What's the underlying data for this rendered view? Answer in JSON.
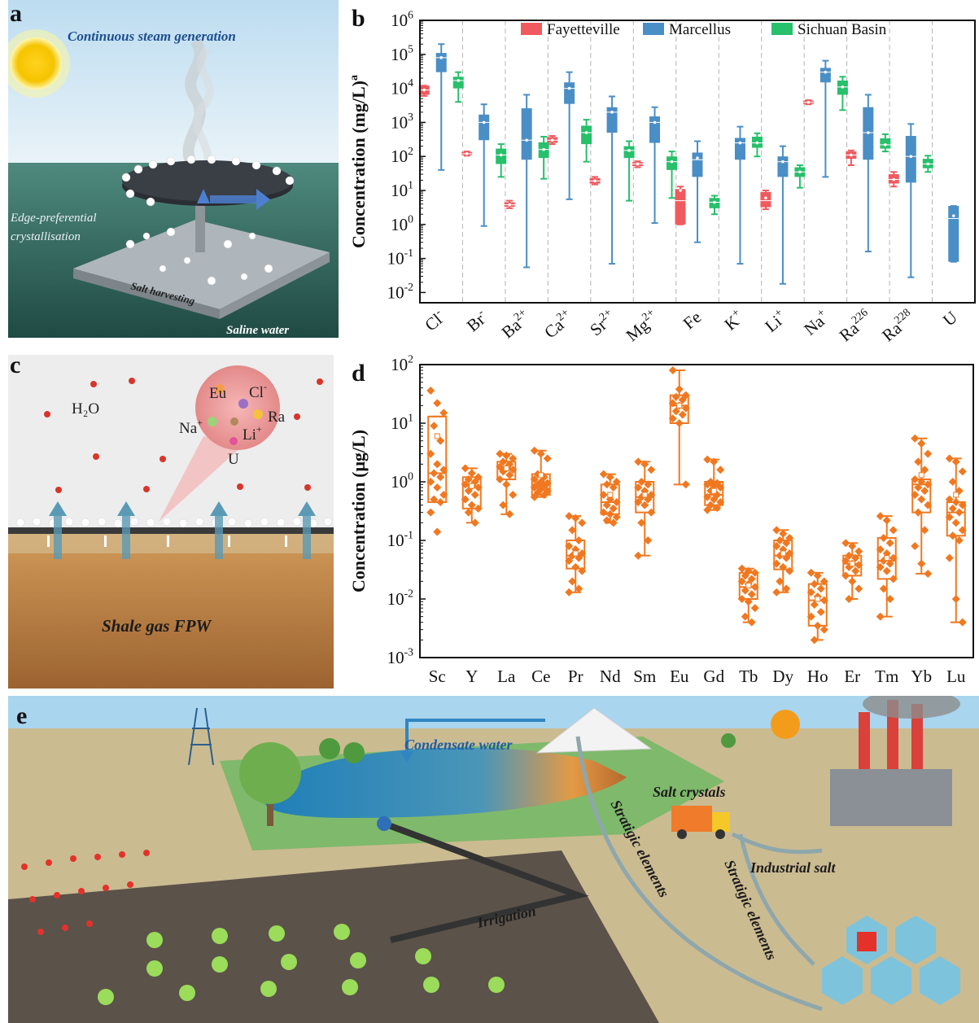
{
  "panels": {
    "a": {
      "label": "a",
      "title": "Continuous steam generation",
      "edge_text_1": "Edge-preferential",
      "edge_text_2": "crystallisation",
      "harvest_text": "Salt harvesting",
      "water_text": "Saline water",
      "colors": {
        "sky": "#cfe6f5",
        "sea": "#6f9e91",
        "disc": "#2a2d33",
        "plate": "#b9c2c8"
      }
    },
    "c": {
      "label": "c",
      "h2o": "H₂O",
      "ions": {
        "eu": "Eu",
        "cl": "Cl",
        "cl_sup": "-",
        "na": "Na",
        "na_sup": "+",
        "ra": "Ra",
        "li": "Li",
        "li_sup": "+",
        "u": "U"
      },
      "fpw": "Shale gas FPW",
      "colors": {
        "ground": "#c58a4d",
        "membrane": "#3a3a3a",
        "arrow": "#4f8faa"
      }
    },
    "e": {
      "label": "e",
      "condensate": "Condensate water",
      "salt": "Salt crystals",
      "irrigation": "Irrigation",
      "strat1": "Stratigic elements",
      "strat2": "Stratigic elements",
      "industrial": "Industrial salt",
      "colors": {
        "sky": "#a7d4ef",
        "ground": "#c9b98f",
        "field": "#5a5148",
        "lake": "#2f86b7"
      }
    }
  },
  "chart_data": [
    {
      "panel": "b",
      "type": "box",
      "label": "b",
      "ylabel_main": "Concentration (mg/L)",
      "ylabel_sup": "a",
      "y_scale": "log",
      "ylim": [
        0.005,
        1000000
      ],
      "yticks": [
        {
          "base": "10",
          "exp": "-2"
        },
        {
          "base": "10",
          "exp": "-1"
        },
        {
          "base": "10",
          "exp": "0"
        },
        {
          "base": "10",
          "exp": "1"
        },
        {
          "base": "10",
          "exp": "2"
        },
        {
          "base": "10",
          "exp": "3"
        },
        {
          "base": "10",
          "exp": "4"
        },
        {
          "base": "10",
          "exp": "5"
        },
        {
          "base": "10",
          "exp": "6"
        }
      ],
      "grid": "vertical dashed separators",
      "legend_position": "top",
      "categories": [
        {
          "base": "Cl",
          "sup": "-"
        },
        {
          "base": "Br",
          "sup": "-"
        },
        {
          "base": "Ba",
          "sup": "2+"
        },
        {
          "base": "Ca",
          "sup": "2+"
        },
        {
          "base": "Sr",
          "sup": "2+"
        },
        {
          "base": "Mg",
          "sup": "2+"
        },
        {
          "base": "Fe",
          "sup": ""
        },
        {
          "base": "K",
          "sup": "+"
        },
        {
          "base": "Li",
          "sup": "+"
        },
        {
          "base": "Na",
          "sup": "+"
        },
        {
          "base": "Ra",
          "sup": "226"
        },
        {
          "base": "Ra",
          "sup": "228"
        },
        {
          "base": "U",
          "sup": ""
        }
      ],
      "series": [
        {
          "name": "Fayetteville",
          "color": "#f05a5e",
          "boxes": [
            {
              "min": 6000,
              "q1": 6500,
              "med": 9000,
              "q3": 12000,
              "max": 12000,
              "mean": 9000
            },
            {
              "min": 105,
              "q1": 110,
              "med": 120,
              "q3": 135,
              "max": 140,
              "mean": 120
            },
            {
              "min": 3,
              "q1": 3.3,
              "med": 3.8,
              "q3": 4.5,
              "max": 5,
              "mean": 3.8
            },
            {
              "min": 230,
              "q1": 250,
              "med": 300,
              "q3": 370,
              "max": 400,
              "mean": 300
            },
            {
              "min": 15,
              "q1": 16,
              "med": 19,
              "q3": 23,
              "max": 25,
              "mean": 19
            },
            {
              "min": 48,
              "q1": 52,
              "med": 60,
              "q3": 68,
              "max": 72,
              "mean": 60
            },
            {
              "min": 1,
              "q1": 1,
              "med": 5,
              "q3": 11,
              "max": 13,
              "mean": 10
            },
            null,
            {
              "min": 2.8,
              "q1": 3.2,
              "med": 5,
              "q3": 9,
              "max": 10,
              "mean": 6
            },
            {
              "min": 3400,
              "q1": 3500,
              "med": 3900,
              "q3": 4400,
              "max": 4500,
              "mean": 3900
            },
            {
              "min": 55,
              "q1": 85,
              "med": 110,
              "q3": 140,
              "max": 150,
              "mean": 110
            },
            {
              "min": 13,
              "q1": 16,
              "med": 21,
              "q3": 30,
              "max": 35,
              "mean": 21
            },
            null
          ]
        },
        {
          "name": "Marcellus",
          "color": "#4a8ec6",
          "boxes": [
            {
              "min": 40,
              "q1": 30000,
              "med": 80000,
              "q3": 110000,
              "max": 200000,
              "mean": 80000
            },
            {
              "min": 0.9,
              "q1": 300,
              "med": 1000,
              "q3": 1700,
              "max": 3400,
              "mean": 1000
            },
            {
              "min": 0.055,
              "q1": 80,
              "med": 300,
              "q3": 2600,
              "max": 6500,
              "mean": 300
            },
            {
              "min": 5.5,
              "q1": 3500,
              "med": 10000,
              "q3": 15000,
              "max": 30000,
              "mean": 10000
            },
            {
              "min": 0.07,
              "q1": 500,
              "med": 2000,
              "q3": 2800,
              "max": 5800,
              "mean": 2000
            },
            {
              "min": 1.1,
              "q1": 250,
              "med": 1000,
              "q3": 1500,
              "max": 2800,
              "mean": 1000
            },
            {
              "min": 0.3,
              "q1": 25,
              "med": 80,
              "q3": 130,
              "max": 280,
              "mean": 90
            },
            {
              "min": 0.07,
              "q1": 80,
              "med": 250,
              "q3": 350,
              "max": 750,
              "mean": 250
            },
            {
              "min": 0.018,
              "q1": 25,
              "med": 70,
              "q3": 100,
              "max": 200,
              "mean": 70
            },
            {
              "min": 25,
              "q1": 15000,
              "med": 30000,
              "q3": 40000,
              "max": 65000,
              "mean": 30000
            },
            {
              "min": 0.16,
              "q1": 80,
              "med": 500,
              "q3": 2800,
              "max": 6500,
              "mean": 500
            },
            {
              "min": 0.028,
              "q1": 17,
              "med": 100,
              "q3": 400,
              "max": 900,
              "mean": 100
            },
            {
              "min": 0.08,
              "q1": 0.08,
              "med": 1.5,
              "q3": 3.5,
              "max": 3.5,
              "mean": 1.8
            }
          ]
        },
        {
          "name": "Sichuan Basin",
          "color": "#27c06b",
          "boxes": [
            {
              "min": 4000,
              "q1": 10000,
              "med": 17000,
              "q3": 22000,
              "max": 30000,
              "mean": 17000
            },
            {
              "min": 25,
              "q1": 60,
              "med": 110,
              "q3": 170,
              "max": 230,
              "mean": 110
            },
            {
              "min": 22,
              "q1": 90,
              "med": 160,
              "q3": 260,
              "max": 380,
              "mean": 160
            },
            {
              "min": 70,
              "q1": 230,
              "med": 500,
              "q3": 800,
              "max": 1200,
              "mean": 500
            },
            {
              "min": 5,
              "q1": 90,
              "med": 150,
              "q3": 200,
              "max": 280,
              "mean": 150
            },
            {
              "min": 6,
              "q1": 40,
              "med": 70,
              "q3": 100,
              "max": 140,
              "mean": 70
            },
            {
              "min": 2,
              "q1": 3,
              "med": 4.5,
              "q3": 6,
              "max": 7,
              "mean": 4.5
            },
            {
              "min": 100,
              "q1": 180,
              "med": 250,
              "q3": 380,
              "max": 480,
              "mean": 250
            },
            {
              "min": 12,
              "q1": 25,
              "med": 35,
              "q3": 48,
              "max": 55,
              "mean": 35
            },
            {
              "min": 2300,
              "q1": 6500,
              "med": 11000,
              "q3": 17000,
              "max": 22000,
              "mean": 11000
            },
            {
              "min": 140,
              "q1": 170,
              "med": 220,
              "q3": 340,
              "max": 450,
              "mean": 220
            },
            {
              "min": 35,
              "q1": 45,
              "med": 60,
              "q3": 85,
              "max": 105,
              "mean": 60
            },
            null
          ]
        }
      ]
    },
    {
      "panel": "d",
      "type": "box",
      "label": "d",
      "ylabel": "Concentration (μg/L)",
      "y_scale": "log",
      "ylim": [
        0.001,
        100
      ],
      "yticks": [
        {
          "base": "10",
          "exp": "-3"
        },
        {
          "base": "10",
          "exp": "-2"
        },
        {
          "base": "10",
          "exp": "-1"
        },
        {
          "base": "10",
          "exp": "0"
        },
        {
          "base": "10",
          "exp": "1"
        },
        {
          "base": "10",
          "exp": "2"
        }
      ],
      "color": "#f07820",
      "categories": [
        "Sc",
        "Y",
        "La",
        "Ce",
        "Pr",
        "Nd",
        "Sm",
        "Eu",
        "Gd",
        "Tb",
        "Dy",
        "Ho",
        "Er",
        "Tm",
        "Yb",
        "Lu"
      ],
      "boxes": [
        {
          "min": 0.45,
          "q1": 0.45,
          "med": 1.4,
          "q3": 13,
          "max": 13,
          "mean": 6,
          "points": [
            36,
            22,
            15,
            9,
            5,
            3,
            2,
            1.6,
            1.4,
            1.2,
            1,
            0.8,
            0.6,
            0.5,
            0.45,
            0.3,
            0.14
          ]
        },
        {
          "min": 0.2,
          "q1": 0.35,
          "med": 0.85,
          "q3": 1.2,
          "max": 1.7,
          "mean": 0.85,
          "points": [
            1.7,
            1.4,
            1.2,
            1.1,
            1,
            0.9,
            0.85,
            0.8,
            0.7,
            0.6,
            0.5,
            0.4,
            0.35,
            0.3,
            0.2
          ]
        },
        {
          "min": 0.28,
          "q1": 1.1,
          "med": 1.7,
          "q3": 2.2,
          "max": 3,
          "mean": 1.7,
          "points": [
            3,
            2.8,
            2.5,
            2.2,
            2,
            1.8,
            1.7,
            1.6,
            1.5,
            1.3,
            1.1,
            0.9,
            0.6,
            0.4,
            0.28
          ]
        },
        {
          "min": 0.55,
          "q1": 0.6,
          "med": 0.9,
          "q3": 1.35,
          "max": 3.4,
          "mean": 1.3,
          "points": [
            3.4,
            3,
            2.5,
            1.35,
            1.2,
            1.1,
            1,
            0.95,
            0.9,
            0.85,
            0.8,
            0.75,
            0.7,
            0.65,
            0.6,
            0.55
          ]
        },
        {
          "min": 0.013,
          "q1": 0.033,
          "med": 0.055,
          "q3": 0.1,
          "max": 0.26,
          "mean": 0.06,
          "points": [
            0.26,
            0.24,
            0.2,
            0.15,
            0.1,
            0.08,
            0.07,
            0.06,
            0.055,
            0.05,
            0.045,
            0.035,
            0.03,
            0.02,
            0.015,
            0.013
          ]
        },
        {
          "min": 0.2,
          "q1": 0.28,
          "med": 0.45,
          "q3": 0.9,
          "max": 1.35,
          "mean": 0.6,
          "points": [
            1.35,
            1.2,
            1,
            0.9,
            0.8,
            0.6,
            0.5,
            0.45,
            0.4,
            0.35,
            0.3,
            0.28,
            0.25,
            0.22,
            0.2
          ]
        },
        {
          "min": 0.055,
          "q1": 0.3,
          "med": 0.55,
          "q3": 1,
          "max": 2.2,
          "mean": 0.6,
          "points": [
            2.2,
            2,
            1.6,
            1,
            0.9,
            0.8,
            0.7,
            0.6,
            0.55,
            0.5,
            0.45,
            0.4,
            0.3,
            0.2,
            0.1,
            0.055
          ]
        },
        {
          "min": 0.9,
          "q1": 10,
          "med": 20,
          "q3": 30,
          "max": 80,
          "mean": 20,
          "points": [
            80,
            38,
            30,
            28,
            25,
            22,
            20,
            18,
            16,
            14,
            12,
            10,
            0.9
          ]
        },
        {
          "min": 0.33,
          "q1": 0.4,
          "med": 0.6,
          "q3": 1,
          "max": 2.4,
          "mean": 0.7,
          "points": [
            2.4,
            2.2,
            1.6,
            1,
            0.95,
            0.9,
            0.85,
            0.8,
            0.7,
            0.6,
            0.55,
            0.5,
            0.45,
            0.4,
            0.36,
            0.33
          ]
        },
        {
          "min": 0.004,
          "q1": 0.01,
          "med": 0.016,
          "q3": 0.028,
          "max": 0.033,
          "mean": 0.017,
          "points": [
            0.033,
            0.03,
            0.028,
            0.025,
            0.022,
            0.02,
            0.018,
            0.016,
            0.014,
            0.012,
            0.01,
            0.009,
            0.007,
            0.005,
            0.004
          ]
        },
        {
          "min": 0.013,
          "q1": 0.032,
          "med": 0.055,
          "q3": 0.1,
          "max": 0.15,
          "mean": 0.06,
          "points": [
            0.15,
            0.13,
            0.11,
            0.1,
            0.09,
            0.08,
            0.07,
            0.06,
            0.055,
            0.05,
            0.04,
            0.035,
            0.03,
            0.02,
            0.015,
            0.013
          ]
        },
        {
          "min": 0.002,
          "q1": 0.0035,
          "med": 0.0095,
          "q3": 0.018,
          "max": 0.028,
          "mean": 0.01,
          "points": [
            0.028,
            0.025,
            0.02,
            0.018,
            0.015,
            0.013,
            0.011,
            0.0095,
            0.008,
            0.006,
            0.005,
            0.0035,
            0.003,
            0.002
          ]
        },
        {
          "min": 0.01,
          "q1": 0.025,
          "med": 0.04,
          "q3": 0.055,
          "max": 0.09,
          "mean": 0.04,
          "points": [
            0.09,
            0.08,
            0.065,
            0.055,
            0.05,
            0.045,
            0.04,
            0.038,
            0.035,
            0.03,
            0.025,
            0.02,
            0.015,
            0.01
          ]
        },
        {
          "min": 0.005,
          "q1": 0.022,
          "med": 0.045,
          "q3": 0.11,
          "max": 0.26,
          "mean": 0.05,
          "points": [
            0.26,
            0.22,
            0.15,
            0.11,
            0.09,
            0.07,
            0.06,
            0.05,
            0.045,
            0.04,
            0.035,
            0.03,
            0.022,
            0.015,
            0.01,
            0.005
          ]
        },
        {
          "min": 0.027,
          "q1": 0.3,
          "med": 0.9,
          "q3": 1.1,
          "max": 5.5,
          "mean": 1.3,
          "points": [
            5.5,
            4.5,
            3,
            2.2,
            1.6,
            1.1,
            1,
            0.9,
            0.8,
            0.7,
            0.6,
            0.5,
            0.4,
            0.3,
            0.15,
            0.08,
            0.04,
            0.027
          ]
        },
        {
          "min": 0.004,
          "q1": 0.12,
          "med": 0.3,
          "q3": 0.45,
          "max": 2.5,
          "mean": 0.6,
          "points": [
            2.5,
            2.2,
            1.5,
            1,
            0.7,
            0.5,
            0.45,
            0.4,
            0.35,
            0.3,
            0.25,
            0.2,
            0.15,
            0.12,
            0.1,
            0.05,
            0.01,
            0.004
          ]
        }
      ]
    }
  ]
}
